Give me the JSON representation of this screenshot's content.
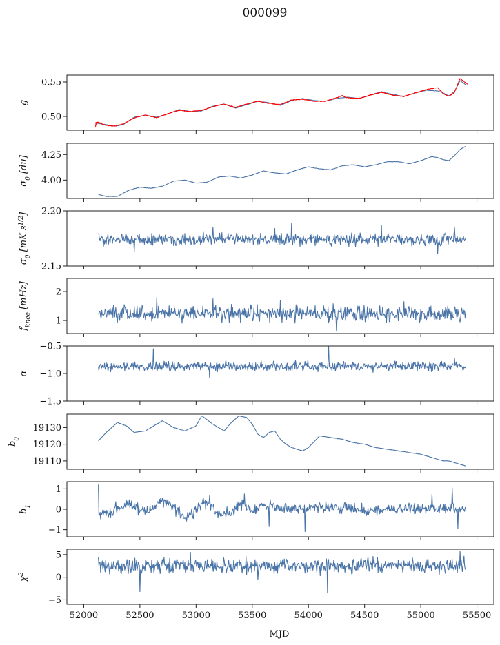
{
  "title": "000099",
  "xlabel": "MJD",
  "colors": {
    "series": "#4a74a8",
    "model": "#ff0000"
  },
  "chart_data": {
    "type": "line",
    "xlim": [
      51850,
      55650
    ],
    "xticks": [
      52000,
      52500,
      53000,
      53500,
      54000,
      54500,
      55000,
      55500
    ],
    "panels": [
      {
        "id": "g",
        "ylabel": "g",
        "ylim": [
          0.48,
          0.56
        ],
        "yticks": [
          0.5,
          0.55
        ],
        "yticklabels": [
          "0.50",
          "0.55"
        ],
        "series": [
          {
            "color": "#4a74a8",
            "x": [
              52120,
              52200,
              52280,
              52350,
              52450,
              52550,
              52650,
              52750,
              52850,
              52950,
              53050,
              53150,
              53250,
              53350,
              53450,
              53550,
              53650,
              53750,
              53850,
              53950,
              54050,
              54150,
              54250,
              54350,
              54450,
              54550,
              54650,
              54750,
              54850,
              54950,
              55050,
              55150,
              55200,
              55250,
              55300,
              55350,
              55400
            ],
            "y": [
              0.49,
              0.488,
              0.486,
              0.488,
              0.499,
              0.502,
              0.499,
              0.504,
              0.51,
              0.507,
              0.508,
              0.515,
              0.518,
              0.512,
              0.517,
              0.522,
              0.52,
              0.516,
              0.523,
              0.526,
              0.523,
              0.522,
              0.526,
              0.528,
              0.526,
              0.531,
              0.536,
              0.532,
              0.529,
              0.534,
              0.538,
              0.537,
              0.534,
              0.53,
              0.536,
              0.552,
              0.546
            ]
          },
          {
            "color": "#ff0000",
            "x": [
              52105,
              52110,
              52115,
              52120,
              52200,
              52280,
              52350,
              52450,
              52550,
              52650,
              52750,
              52850,
              52950,
              53050,
              53150,
              53250,
              53350,
              53450,
              53550,
              53650,
              53750,
              53850,
              53950,
              54050,
              54150,
              54250,
              54300,
              54350,
              54450,
              54550,
              54650,
              54750,
              54850,
              54950,
              55050,
              55150,
              55200,
              55250,
              55300,
              55350,
              55420
            ],
            "y": [
              0.484,
              0.494,
              0.486,
              0.492,
              0.487,
              0.486,
              0.489,
              0.498,
              0.502,
              0.498,
              0.504,
              0.509,
              0.507,
              0.509,
              0.514,
              0.518,
              0.513,
              0.518,
              0.522,
              0.519,
              0.517,
              0.524,
              0.525,
              0.522,
              0.522,
              0.527,
              0.53,
              0.527,
              0.526,
              0.531,
              0.535,
              0.531,
              0.529,
              0.534,
              0.539,
              0.542,
              0.533,
              0.529,
              0.535,
              0.555,
              0.546
            ]
          }
        ]
      },
      {
        "id": "sigma0-du",
        "ylabel": "σ0 [du]",
        "ylim": [
          3.82,
          4.36
        ],
        "yticks": [
          4.0,
          4.25
        ],
        "yticklabels": [
          "4.00",
          "4.25"
        ],
        "series": [
          {
            "color": "#4a74a8",
            "x": [
              52130,
              52200,
              52300,
              52400,
              52500,
              52600,
              52700,
              52800,
              52900,
              53000,
              53100,
              53200,
              53300,
              53400,
              53500,
              53600,
              53700,
              53800,
              53900,
              54000,
              54100,
              54200,
              54300,
              54400,
              54500,
              54600,
              54700,
              54800,
              54900,
              55000,
              55100,
              55150,
              55200,
              55250,
              55300,
              55350,
              55400
            ],
            "y": [
              3.86,
              3.84,
              3.84,
              3.9,
              3.93,
              3.92,
              3.94,
              3.99,
              4.0,
              3.97,
              3.98,
              4.03,
              4.04,
              4.02,
              4.05,
              4.09,
              4.07,
              4.06,
              4.1,
              4.13,
              4.11,
              4.1,
              4.14,
              4.15,
              4.13,
              4.15,
              4.18,
              4.18,
              4.16,
              4.19,
              4.23,
              4.22,
              4.2,
              4.19,
              4.24,
              4.3,
              4.33
            ]
          }
        ]
      },
      {
        "id": "sigma0-mk",
        "ylabel": "σ0[mK s1/2]",
        "ylim": [
          2.15,
          2.2
        ],
        "yticks": [
          2.15,
          2.2
        ],
        "yticklabels": [
          "2.15",
          "2.20"
        ],
        "noise": {
          "base": 2.174,
          "amp": 0.0035,
          "spikes": [
            [
              52450,
              2.163
            ],
            [
              53150,
              2.185
            ],
            [
              53700,
              2.184
            ],
            [
              53850,
              2.189
            ],
            [
              54650,
              2.187
            ],
            [
              55150,
              2.161
            ],
            [
              55300,
              2.185
            ]
          ]
        },
        "series": [
          {
            "color": "#4a74a8",
            "x_range": [
              52130,
              55400
            ]
          }
        ]
      },
      {
        "id": "fknee",
        "ylabel": "fknee [mHz]",
        "ylim": [
          0.55,
          2.45
        ],
        "yticks": [
          1,
          2
        ],
        "yticklabels": [
          "1",
          "2"
        ],
        "noise": {
          "base": 1.23,
          "amp": 0.17,
          "spikes": [
            [
              52650,
              1.8
            ],
            [
              53150,
              1.75
            ],
            [
              53750,
              1.7
            ],
            [
              54250,
              0.65
            ],
            [
              54850,
              1.65
            ],
            [
              55350,
              0.95
            ]
          ]
        },
        "series": [
          {
            "color": "#4a74a8",
            "x_range": [
              52130,
              55400
            ]
          }
        ]
      },
      {
        "id": "alpha",
        "ylabel": "α",
        "ylim": [
          -1.5,
          -0.5
        ],
        "yticks": [
          -1.5,
          -1.0,
          -0.5
        ],
        "yticklabels": [
          "−1.5",
          "−1.0",
          "−0.5"
        ],
        "noise": {
          "base": -0.87,
          "amp": 0.055,
          "spikes": [
            [
              52620,
              -0.55
            ],
            [
              54180,
              -0.5
            ],
            [
              53120,
              -1.08
            ],
            [
              55300,
              -0.72
            ]
          ]
        },
        "series": [
          {
            "color": "#4a74a8",
            "x_range": [
              52130,
              55400
            ]
          }
        ]
      },
      {
        "id": "b0",
        "ylabel": "b0",
        "ylim": [
          19105,
          19138
        ],
        "yticks": [
          19110,
          19120,
          19130
        ],
        "yticklabels": [
          "19110",
          "19120",
          "19130"
        ],
        "series": [
          {
            "color": "#4a74a8",
            "x": [
              52130,
              52200,
              52300,
              52380,
              52450,
              52550,
              52650,
              52700,
              52800,
              52900,
              53000,
              53050,
              53150,
              53250,
              53300,
              53380,
              53450,
              53500,
              53550,
              53600,
              53650,
              53700,
              53750,
              53800,
              53850,
              53900,
              53950,
              54000,
              54100,
              54200,
              54300,
              54400,
              54500,
              54600,
              54700,
              54800,
              54900,
              55000,
              55100,
              55150,
              55200,
              55250,
              55300,
              55350,
              55400
            ],
            "y": [
              19122,
              19127,
              19133,
              19131,
              19127,
              19128,
              19132,
              19134,
              19130,
              19128,
              19131,
              19137,
              19132,
              19128,
              19132,
              19137,
              19136,
              19132,
              19126,
              19124,
              19127,
              19128,
              19123,
              19120,
              19118,
              19117,
              19116,
              19118,
              19125,
              19124,
              19123,
              19121,
              19120,
              19118,
              19117,
              19116,
              19115,
              19114,
              19112,
              19111,
              19110,
              19110,
              19109,
              19108,
              19107
            ]
          }
        ]
      },
      {
        "id": "b1",
        "ylabel": "b1",
        "ylim": [
          -1.35,
          1.35
        ],
        "yticks": [
          -1,
          0,
          1
        ],
        "yticklabels": [
          "−1",
          "0",
          "1"
        ],
        "trend": {
          "x": [
            52130,
            52250,
            52400,
            52550,
            52700,
            52800,
            52900,
            53000,
            53100,
            53200,
            53300,
            53400,
            53500,
            53600,
            53700,
            53900,
            54100,
            54500,
            55000,
            55400
          ],
          "y": [
            -0.3,
            -0.1,
            0.3,
            -0.2,
            0.4,
            0.1,
            -0.4,
            0.0,
            0.4,
            -0.2,
            -0.2,
            0.3,
            -0.1,
            0.2,
            0.1,
            0.0,
            0.1,
            0.0,
            0.05,
            0.0
          ]
        },
        "noise": {
          "base": 0.0,
          "amp": 0.18,
          "spikes": [
            [
              52130,
              1.2
            ],
            [
              53430,
              0.75
            ],
            [
              53650,
              -0.85
            ],
            [
              53970,
              -1.1
            ],
            [
              55100,
              0.75
            ],
            [
              55280,
              1.05
            ],
            [
              55330,
              -0.95
            ]
          ]
        },
        "series": [
          {
            "color": "#4a74a8",
            "x_range": [
              52130,
              55400
            ]
          }
        ]
      },
      {
        "id": "chi2",
        "ylabel": "χ2",
        "ylim": [
          -6,
          6.2
        ],
        "yticks": [
          -5,
          0,
          5
        ],
        "yticklabels": [
          "−5",
          "0",
          "5"
        ],
        "noise": {
          "base": 2.5,
          "amp": 1.1,
          "spikes": [
            [
              52500,
              -3.2
            ],
            [
              52950,
              5.5
            ],
            [
              54170,
              -3.5
            ],
            [
              55350,
              5.8
            ],
            [
              53550,
              -0.6
            ]
          ]
        },
        "series": [
          {
            "color": "#4a74a8",
            "x_range": [
              52130,
              55400
            ]
          }
        ]
      }
    ]
  }
}
